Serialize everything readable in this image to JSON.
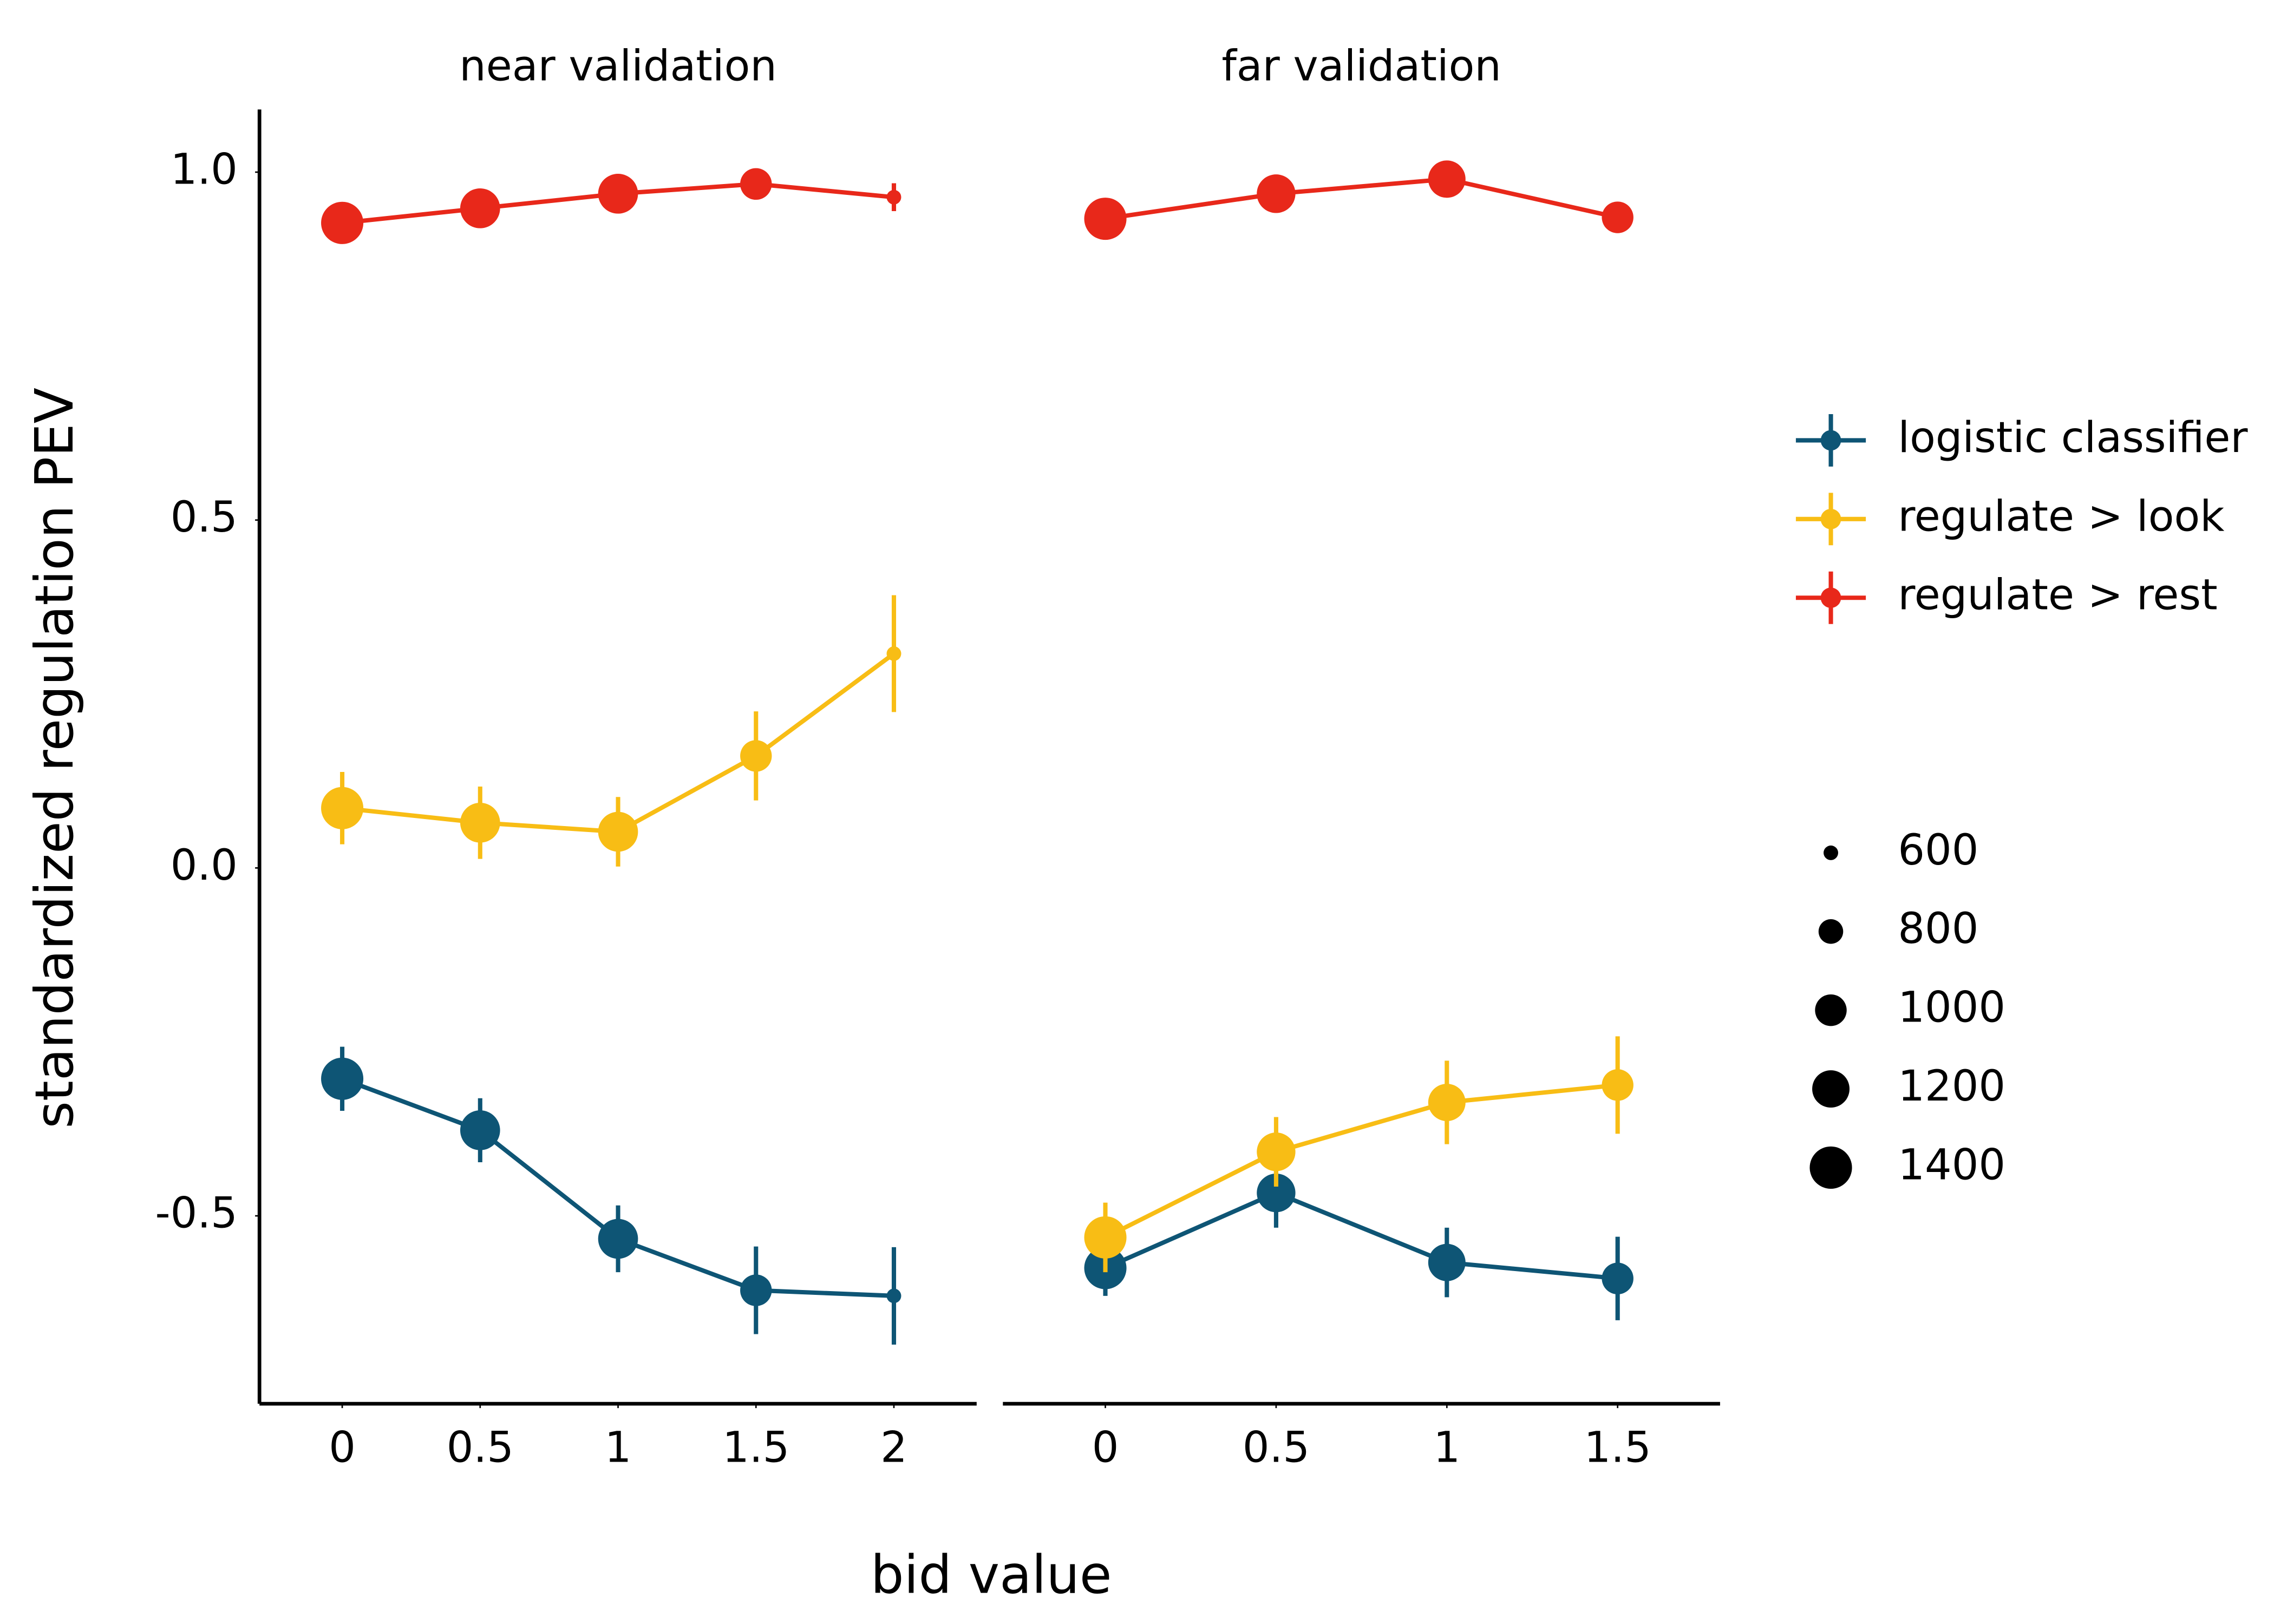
{
  "chart_data": {
    "type": "line",
    "xlabel": "bid value",
    "ylabel": "standardized regulation PEV",
    "ylim": [
      -0.77,
      1.09
    ],
    "yticks": [
      {
        "value": 1,
        "label": "1.0"
      },
      0.5,
      {
        "value": 0,
        "label": "0.0"
      },
      -0.5
    ],
    "legend": "right",
    "series": [
      {
        "name": "logistic classifier",
        "color": "#0e5575"
      },
      {
        "name": "regulate > look",
        "color": "#f8bd15"
      },
      {
        "name": "regulate > rest",
        "color": "#e8281a"
      }
    ],
    "size_legend": [
      600,
      800,
      1000,
      1200,
      1400
    ],
    "panels": [
      {
        "title": "near validation",
        "x": [
          0,
          0.5,
          1,
          1.5,
          2
        ],
        "xlim": [
          -0.3,
          2.3
        ],
        "xticks": [
          0,
          0.5,
          1,
          1.5,
          2
        ],
        "sizes": [
          1400,
          1300,
          1300,
          1000,
          600
        ],
        "series": [
          {
            "values": [
              -0.303,
              -0.377,
              -0.533,
              -0.607,
              -0.615
            ],
            "errors": [
              0.046,
              0.046,
              0.048,
              0.063,
              0.07
            ]
          },
          {
            "values": [
              0.086,
              0.065,
              0.052,
              0.161,
              0.308
            ],
            "errors": [
              0.052,
              0.052,
              0.05,
              0.064,
              0.084
            ]
          },
          {
            "values": [
              0.927,
              0.948,
              0.969,
              0.983,
              0.964
            ],
            "errors": [
              0.01,
              0.01,
              0.01,
              0.01,
              0.02
            ]
          }
        ]
      },
      {
        "title": "far validation",
        "x": [
          0,
          0.5,
          1,
          1.5
        ],
        "xlim": [
          -0.3,
          1.8
        ],
        "xticks": [
          0,
          0.5,
          1,
          1.5
        ],
        "sizes": [
          1400,
          1250,
          1200,
          1000
        ],
        "series": [
          {
            "values": [
              -0.575,
              -0.467,
              -0.567,
              -0.59
            ],
            "errors": [
              0.04,
              0.05,
              0.05,
              0.06
            ]
          },
          {
            "values": [
              -0.531,
              -0.408,
              -0.337,
              -0.312
            ],
            "errors": [
              0.05,
              0.05,
              0.06,
              0.07
            ]
          },
          {
            "values": [
              0.933,
              0.969,
              0.99,
              0.935
            ],
            "errors": [
              0.01,
              0.01,
              0.01,
              0.01
            ]
          }
        ]
      }
    ]
  }
}
